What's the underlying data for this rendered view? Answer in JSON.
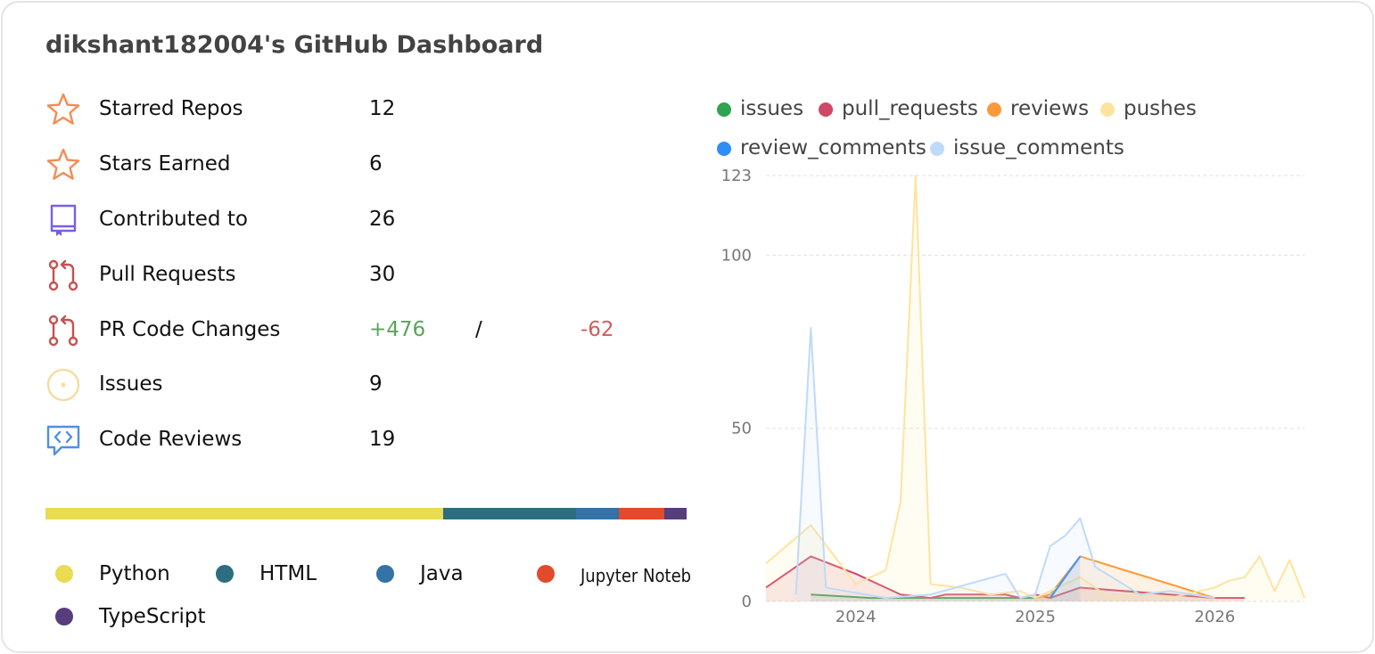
{
  "title": "dikshant182004's GitHub Dashboard",
  "stats": [
    {
      "key": "starred",
      "label": "Starred Repos",
      "value": "12",
      "icon": "star-icon",
      "color": "#f48c55"
    },
    {
      "key": "earned",
      "label": "Stars Earned",
      "value": "6",
      "icon": "star-icon",
      "color": "#f48c55"
    },
    {
      "key": "contributed",
      "label": "Contributed to",
      "value": "26",
      "icon": "repo-icon",
      "color": "#7a5fdc"
    },
    {
      "key": "prs",
      "label": "Pull Requests",
      "value": "30",
      "icon": "pull-request-icon",
      "color": "#c75050"
    },
    {
      "key": "changes",
      "label": "PR Code Changes",
      "plus": "+476",
      "sep": "/",
      "minus": "-62",
      "icon": "pull-request-icon",
      "color": "#c75050"
    },
    {
      "key": "issues",
      "label": "Issues",
      "value": "9",
      "icon": "issue-icon",
      "color": "#f5dca0"
    },
    {
      "key": "reviews",
      "label": "Code Reviews",
      "value": "19",
      "icon": "code-review-icon",
      "color": "#4f8fe8"
    }
  ],
  "languages": [
    {
      "name": "Python",
      "color": "#e9db52",
      "share": 0.62
    },
    {
      "name": "HTML",
      "color": "#2c6e80",
      "share": 0.207
    },
    {
      "name": "Java",
      "color": "#3572a5",
      "share": 0.068
    },
    {
      "name": "Jupyter Noteb",
      "color": "#e3492b",
      "share": 0.07
    },
    {
      "name": "TypeScript",
      "color": "#563d7c",
      "share": 0.035
    }
  ],
  "legend": [
    {
      "name": "issues",
      "color": "#2da44e"
    },
    {
      "name": "pull_requests",
      "color": "#cf4866"
    },
    {
      "name": "reviews",
      "color": "#fb9a38"
    },
    {
      "name": "pushes",
      "color": "#fde49e"
    },
    {
      "name": "review_comments",
      "color": "#2e8df7"
    },
    {
      "name": "issue_comments",
      "color": "#c0daf9"
    }
  ],
  "chart_data": {
    "type": "area",
    "x_axis": {
      "min": "2023-07",
      "max": "2026-07",
      "ticks": [
        "2024",
        "2025",
        "2026"
      ]
    },
    "y_axis": {
      "min": 0,
      "max": 123,
      "ticks": [
        0,
        50,
        100,
        123
      ]
    },
    "grid": true,
    "legend_position": "top",
    "series": [
      {
        "name": "issues",
        "color": "#2da44e",
        "x": [
          "2023-10",
          "2024-02",
          "2025-01",
          "2025-02"
        ],
        "y": [
          2,
          1,
          1,
          2
        ]
      },
      {
        "name": "pull_requests",
        "color": "#cf4866",
        "x": [
          "2023-07",
          "2023-10",
          "2024-01",
          "2024-04",
          "2024-06",
          "2024-07",
          "2024-09",
          "2024-10",
          "2024-11",
          "2024-12",
          "2025-01",
          "2025-02",
          "2025-04",
          "2025-07",
          "2025-10",
          "2026-01",
          "2026-03"
        ],
        "y": [
          4,
          13,
          8,
          2,
          1,
          2,
          2,
          2,
          2,
          1,
          2,
          1,
          4,
          3,
          2,
          1,
          1
        ]
      },
      {
        "name": "reviews",
        "color": "#fb9a38",
        "x": [
          "2025-01",
          "2025-02",
          "2025-04",
          "2026-01"
        ],
        "y": [
          1,
          2,
          13,
          1
        ]
      },
      {
        "name": "pushes",
        "color": "#fde49e",
        "x": [
          "2023-07",
          "2023-10",
          "2024-01",
          "2024-03",
          "2024-04",
          "2024-05",
          "2024-06",
          "2024-08",
          "2024-10",
          "2024-12",
          "2025-01",
          "2025-02",
          "2025-04",
          "2025-06",
          "2025-08",
          "2025-10",
          "2026-01",
          "2026-02",
          "2026-03",
          "2026-04",
          "2026-05",
          "2026-06",
          "2026-07"
        ],
        "y": [
          11,
          22,
          5,
          9,
          29,
          123,
          5,
          4,
          2,
          3,
          1,
          3,
          7,
          1,
          2,
          1,
          4,
          6,
          7,
          13,
          3,
          12,
          1
        ]
      },
      {
        "name": "review_comments",
        "color": "#2e8df7",
        "x": [
          "2025-02",
          "2025-04"
        ],
        "y": [
          1,
          13
        ]
      },
      {
        "name": "issue_comments",
        "color": "#c0daf9",
        "x": [
          "2023-09",
          "2023-10",
          "2023-11",
          "2024-03",
          "2024-06",
          "2024-11",
          "2024-12",
          "2025-01",
          "2025-02",
          "2025-03",
          "2025-04",
          "2025-05",
          "2025-08",
          "2025-10",
          "2026-01"
        ],
        "y": [
          2,
          79,
          4,
          1,
          2,
          8,
          1,
          2,
          16,
          19,
          24,
          10,
          2,
          3,
          1
        ]
      }
    ]
  }
}
